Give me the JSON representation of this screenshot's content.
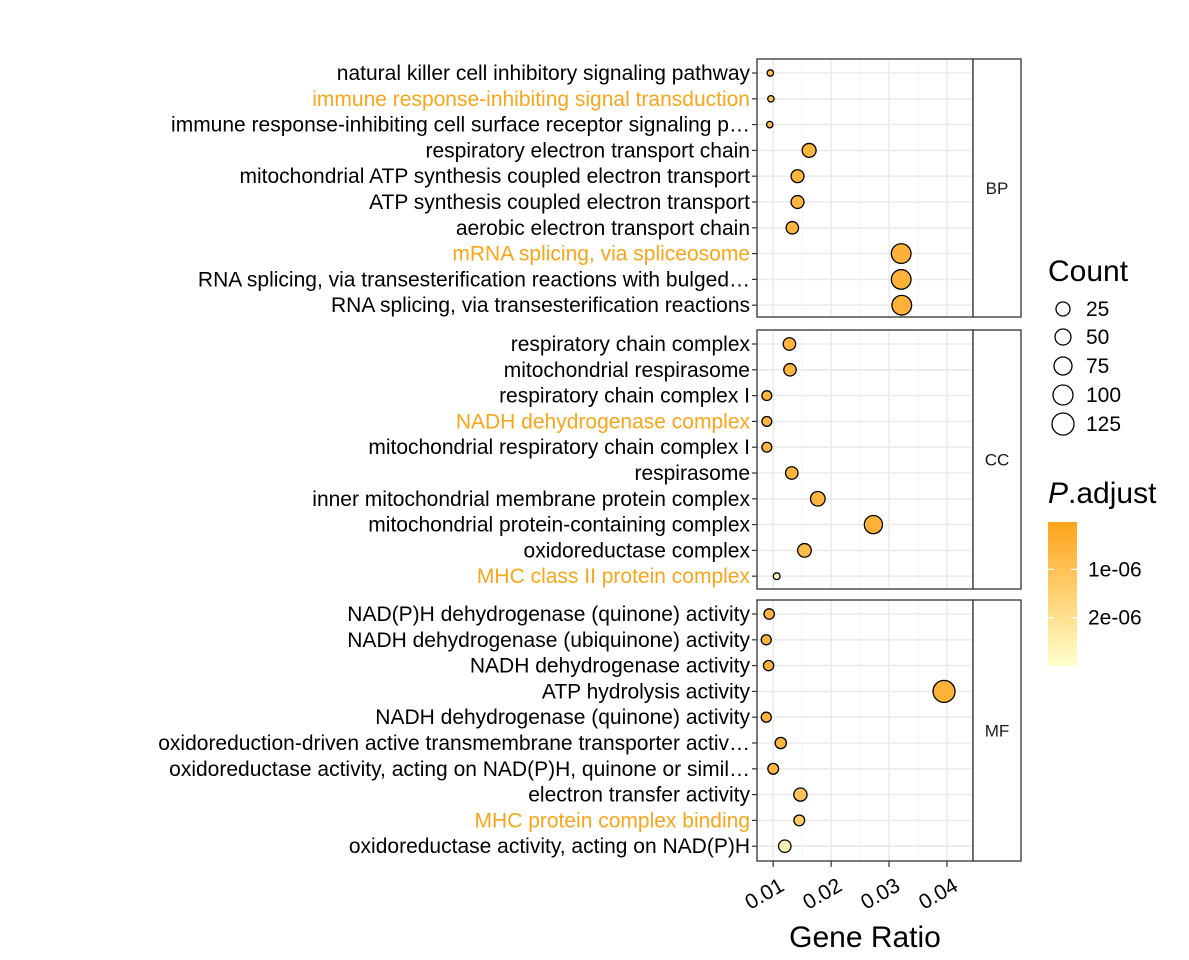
{
  "chart_data": {
    "type": "scatter",
    "xlabel": "Gene Ratio",
    "xlim": [
      0.0072,
      0.0445
    ],
    "x_ticks": [
      0.01,
      0.02,
      0.03,
      0.04
    ],
    "x_tick_labels": [
      "0.01",
      "0.02",
      "0.03",
      "0.04"
    ],
    "grid": true,
    "highlight_color": "#F9A51A",
    "legend_position": "right",
    "size_legend": {
      "title": "Count",
      "values": [
        25,
        50,
        75,
        100,
        125
      ],
      "labels": [
        "25",
        "50",
        "75",
        "100",
        "125"
      ]
    },
    "color_legend": {
      "title_italic": "P",
      "title_rest": ".adjust",
      "ticks": [
        1e-06,
        2e-06
      ],
      "tick_labels": [
        "1e-06",
        "2e-06"
      ],
      "range": [
        2e-08,
        3e-06
      ],
      "low_color": "#FFA31A",
      "high_color": "#FFFFCC"
    },
    "facets": [
      {
        "label": "BP",
        "terms": [
          {
            "label": "natural killer cell inhibitory signaling pathway",
            "gene_ratio": 0.0095,
            "count": 8,
            "p_adjust": 9e-07,
            "highlight": false
          },
          {
            "label": "immune response-inhibiting signal transduction",
            "gene_ratio": 0.0096,
            "count": 9,
            "p_adjust": 1e-06,
            "highlight": true
          },
          {
            "label": "immune response-inhibiting cell surface receptor signaling p…",
            "gene_ratio": 0.0094,
            "count": 7,
            "p_adjust": 9e-07,
            "highlight": false
          },
          {
            "label": "respiratory electron transport chain",
            "gene_ratio": 0.0162,
            "count": 50,
            "p_adjust": 6e-07,
            "highlight": false
          },
          {
            "label": "mitochondrial ATP synthesis coupled electron transport",
            "gene_ratio": 0.0142,
            "count": 43,
            "p_adjust": 6e-07,
            "highlight": false
          },
          {
            "label": "ATP synthesis coupled electron transport",
            "gene_ratio": 0.0142,
            "count": 43,
            "p_adjust": 6e-07,
            "highlight": false
          },
          {
            "label": "aerobic electron transport chain",
            "gene_ratio": 0.0133,
            "count": 40,
            "p_adjust": 6e-07,
            "highlight": false
          },
          {
            "label": "mRNA splicing, via spliceosome",
            "gene_ratio": 0.0321,
            "count": 100,
            "p_adjust": 5e-07,
            "highlight": true
          },
          {
            "label": "RNA splicing, via transesterification reactions with bulged…",
            "gene_ratio": 0.0321,
            "count": 100,
            "p_adjust": 5e-07,
            "highlight": false
          },
          {
            "label": "RNA splicing, via transesterification reactions",
            "gene_ratio": 0.0322,
            "count": 100,
            "p_adjust": 5e-07,
            "highlight": false
          }
        ]
      },
      {
        "label": "CC",
        "terms": [
          {
            "label": "respiratory chain complex",
            "gene_ratio": 0.0128,
            "count": 40,
            "p_adjust": 6e-07,
            "highlight": false
          },
          {
            "label": "mitochondrial respirasome",
            "gene_ratio": 0.0129,
            "count": 40,
            "p_adjust": 6e-07,
            "highlight": false
          },
          {
            "label": "respiratory chain complex I",
            "gene_ratio": 0.0089,
            "count": 25,
            "p_adjust": 6e-07,
            "highlight": false
          },
          {
            "label": "NADH dehydrogenase complex",
            "gene_ratio": 0.0089,
            "count": 25,
            "p_adjust": 6e-07,
            "highlight": true
          },
          {
            "label": "mitochondrial respiratory chain complex I",
            "gene_ratio": 0.0089,
            "count": 25,
            "p_adjust": 6e-07,
            "highlight": false
          },
          {
            "label": "respirasome",
            "gene_ratio": 0.0132,
            "count": 40,
            "p_adjust": 6e-07,
            "highlight": false
          },
          {
            "label": "inner mitochondrial membrane protein complex",
            "gene_ratio": 0.0177,
            "count": 55,
            "p_adjust": 6e-07,
            "highlight": false
          },
          {
            "label": "mitochondrial protein-containing complex",
            "gene_ratio": 0.0273,
            "count": 85,
            "p_adjust": 5e-07,
            "highlight": false
          },
          {
            "label": "oxidoreductase complex",
            "gene_ratio": 0.0154,
            "count": 48,
            "p_adjust": 8e-07,
            "highlight": false
          },
          {
            "label": "MHC class II protein complex",
            "gene_ratio": 0.0106,
            "count": 12,
            "p_adjust": 2.5e-06,
            "highlight": true
          }
        ]
      },
      {
        "label": "MF",
        "terms": [
          {
            "label": "NAD(P)H dehydrogenase (quinone) activity",
            "gene_ratio": 0.0093,
            "count": 28,
            "p_adjust": 6e-07,
            "highlight": false
          },
          {
            "label": "NADH dehydrogenase (ubiquinone) activity",
            "gene_ratio": 0.0088,
            "count": 26,
            "p_adjust": 6e-07,
            "highlight": false
          },
          {
            "label": "NADH dehydrogenase activity",
            "gene_ratio": 0.0092,
            "count": 27,
            "p_adjust": 6e-07,
            "highlight": false
          },
          {
            "label": "ATP hydrolysis activity",
            "gene_ratio": 0.0395,
            "count": 125,
            "p_adjust": 5e-07,
            "highlight": false
          },
          {
            "label": "NADH dehydrogenase (quinone) activity",
            "gene_ratio": 0.0088,
            "count": 26,
            "p_adjust": 6e-07,
            "highlight": false
          },
          {
            "label": "oxidoreduction-driven active transmembrane transporter activ…",
            "gene_ratio": 0.0113,
            "count": 33,
            "p_adjust": 6e-07,
            "highlight": false
          },
          {
            "label": "oxidoreductase activity, acting on NAD(P)H, quinone or simil…",
            "gene_ratio": 0.01,
            "count": 30,
            "p_adjust": 7e-07,
            "highlight": false
          },
          {
            "label": "electron transfer activity",
            "gene_ratio": 0.0147,
            "count": 45,
            "p_adjust": 1.1e-06,
            "highlight": false
          },
          {
            "label": "MHC protein complex binding",
            "gene_ratio": 0.0145,
            "count": 30,
            "p_adjust": 1.3e-06,
            "highlight": true
          },
          {
            "label": "oxidoreductase activity, acting on NAD(P)H",
            "gene_ratio": 0.012,
            "count": 40,
            "p_adjust": 2.6e-06,
            "highlight": false
          }
        ]
      }
    ]
  }
}
